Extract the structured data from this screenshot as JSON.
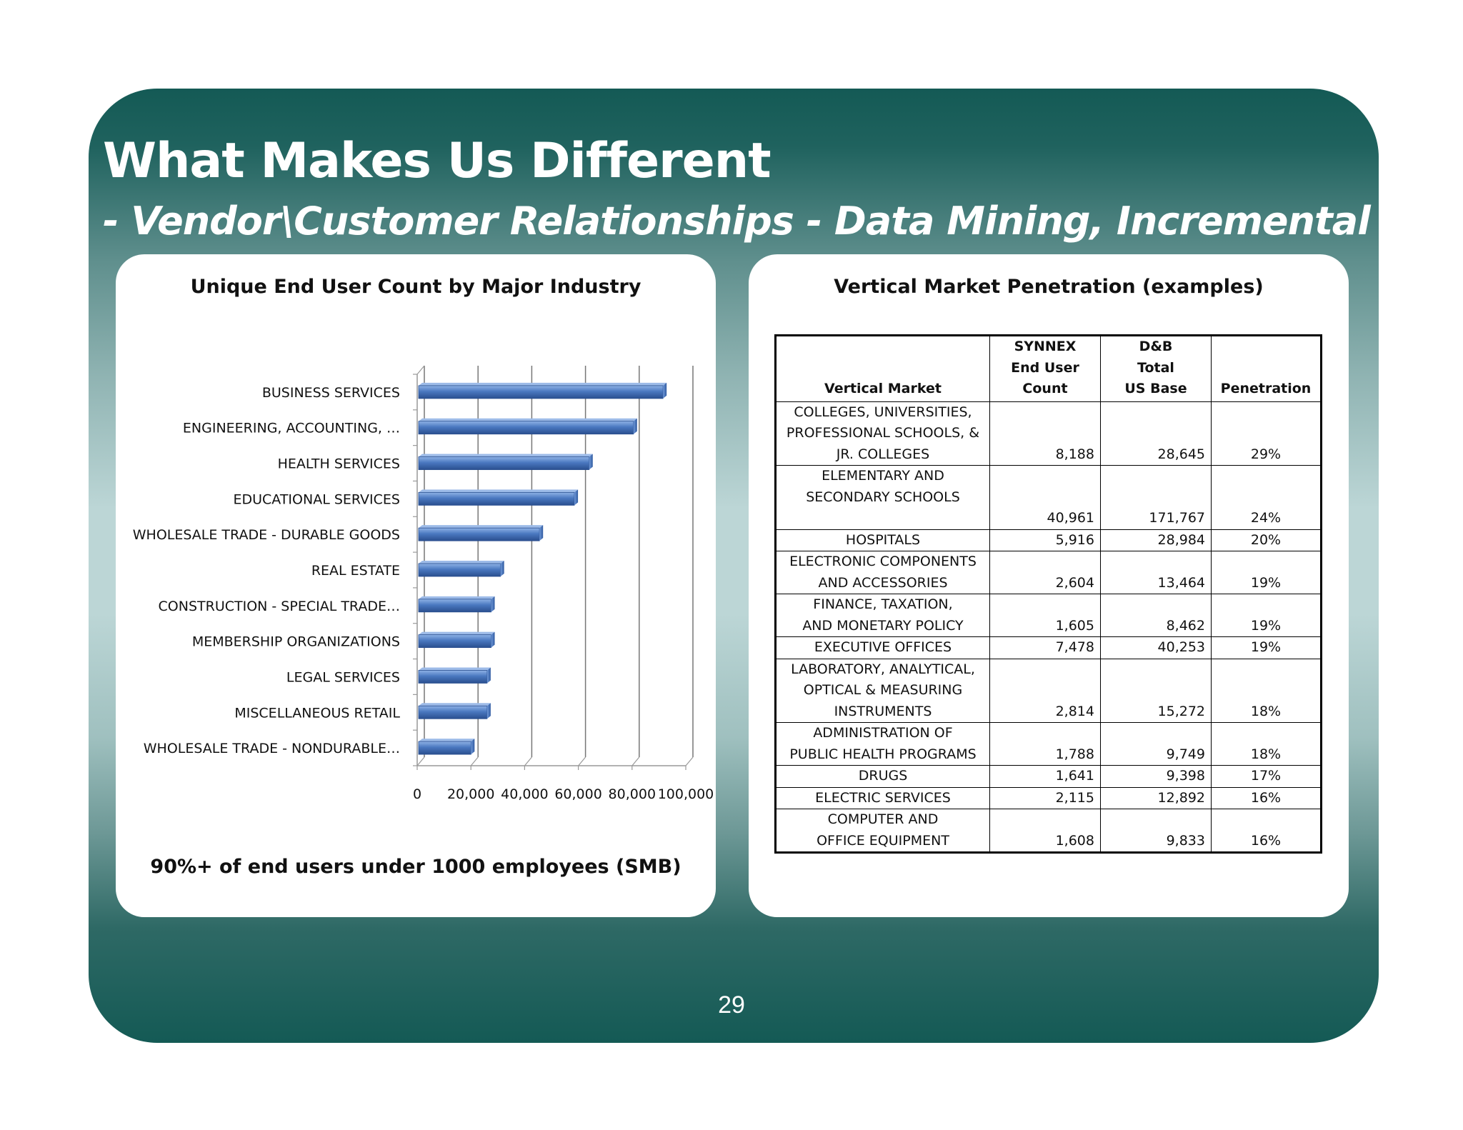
{
  "slide": {
    "title": "What Makes Us Different",
    "subtitle": "- Vendor\\Customer Relationships - Data Mining, Incremental",
    "page_number": "29",
    "colors": {
      "teal_dark": "#145a55",
      "teal_light": "#bcd6d6",
      "bar": "#4a78c0"
    }
  },
  "left_panel": {
    "title": "Unique End User Count by Major Industry",
    "footnote": "90%+ of end users under 1000 employees (SMB)"
  },
  "chart_data": {
    "type": "bar",
    "orientation": "horizontal",
    "title": "Unique End User Count by Major Industry",
    "categories": [
      "BUSINESS SERVICES",
      "ENGINEERING, ACCOUNTING, …",
      "HEALTH SERVICES",
      "EDUCATIONAL SERVICES",
      "WHOLESALE TRADE - DURABLE GOODS",
      "REAL ESTATE",
      "CONSTRUCTION - SPECIAL TRADE…",
      "MEMBERSHIP ORGANIZATIONS",
      "LEGAL SERVICES",
      "MISCELLANEOUS RETAIL",
      "WHOLESALE TRADE - NONDURABLE…"
    ],
    "values": [
      91000,
      80000,
      63500,
      58000,
      45000,
      30500,
      27000,
      27000,
      25500,
      25500,
      19500
    ],
    "xlim": [
      0,
      100000
    ],
    "xticks": [
      "0",
      "20,000",
      "40,000",
      "60,000",
      "80,000",
      "100,000"
    ],
    "xlabel": "",
    "ylabel": "",
    "grid": true
  },
  "right_panel": {
    "title": "Vertical Market Penetration (examples)",
    "table": {
      "headers": {
        "market": "Vertical Market",
        "synnex_1": "SYNNEX",
        "synnex_2": "End User",
        "synnex_3": "Count",
        "db_1": "D&B",
        "db_2": "Total",
        "db_3": "US Base",
        "penetration": "Penetration"
      },
      "rows": [
        {
          "lines": [
            "COLLEGES, UNIVERSITIES,",
            "PROFESSIONAL SCHOOLS, &",
            "JR. COLLEGES"
          ],
          "count": "8,188",
          "base": "28,645",
          "pen": "29%"
        },
        {
          "lines": [
            "ELEMENTARY AND",
            "SECONDARY SCHOOLS",
            ""
          ],
          "count": "40,961",
          "base": "171,767",
          "pen": "24%"
        },
        {
          "lines": [
            "HOSPITALS"
          ],
          "count": "5,916",
          "base": "28,984",
          "pen": "20%"
        },
        {
          "lines": [
            "ELECTRONIC COMPONENTS",
            "AND ACCESSORIES"
          ],
          "count": "2,604",
          "base": "13,464",
          "pen": "19%"
        },
        {
          "lines": [
            "FINANCE, TAXATION,",
            "AND MONETARY POLICY"
          ],
          "count": "1,605",
          "base": "8,462",
          "pen": "19%"
        },
        {
          "lines": [
            "EXECUTIVE OFFICES"
          ],
          "count": "7,478",
          "base": "40,253",
          "pen": "19%"
        },
        {
          "lines": [
            "LABORATORY, ANALYTICAL,",
            "OPTICAL & MEASURING",
            "INSTRUMENTS"
          ],
          "count": "2,814",
          "base": "15,272",
          "pen": "18%"
        },
        {
          "lines": [
            "ADMINISTRATION OF",
            "PUBLIC HEALTH PROGRAMS"
          ],
          "count": "1,788",
          "base": "9,749",
          "pen": "18%"
        },
        {
          "lines": [
            "DRUGS"
          ],
          "count": "1,641",
          "base": "9,398",
          "pen": "17%"
        },
        {
          "lines": [
            "ELECTRIC SERVICES"
          ],
          "count": "2,115",
          "base": "12,892",
          "pen": "16%"
        },
        {
          "lines": [
            "COMPUTER AND",
            "OFFICE EQUIPMENT"
          ],
          "count": "1,608",
          "base": "9,833",
          "pen": "16%"
        }
      ]
    }
  }
}
